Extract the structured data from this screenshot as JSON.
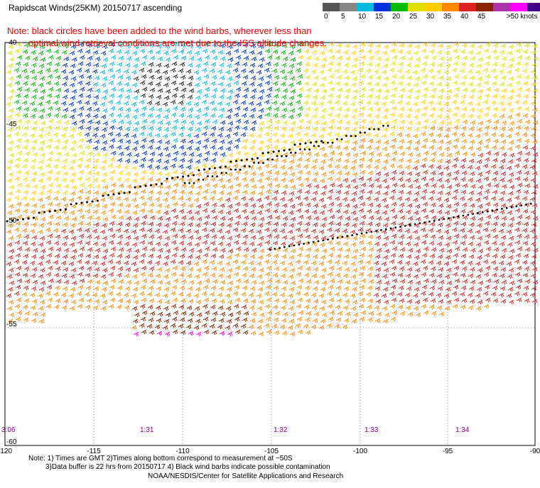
{
  "header": {
    "title": "Rapidscat Winds(25KM) 20150717 ascending"
  },
  "colorbar": {
    "colors": [
      "#555555",
      "#888888",
      "#00bbdd",
      "#0033dd",
      "#00bb00",
      "#dddd00",
      "#ffcc00",
      "#ff8800",
      "#dd2222",
      "#882200",
      "#aa33aa",
      "#ff00ff",
      "#440088"
    ],
    "labels": [
      "0",
      "5",
      "10",
      "15",
      "20",
      "25",
      "30",
      "35",
      "40",
      "45",
      ">50 knots"
    ],
    "label_slots": [
      0,
      1,
      2,
      3,
      4,
      5,
      6,
      7,
      8,
      9,
      10.7
    ]
  },
  "note": {
    "line1": "Note: black circles have been added to the wind barbs, wherever less than",
    "line2": "optimal wind retrieval conditions are met due to the ISS altitude changes."
  },
  "axes": {
    "x_ticks": [
      "-120",
      "-115",
      "-110",
      "-105",
      "-100",
      "-95",
      "-90"
    ],
    "y_ticks": [
      "-40",
      "-45",
      "-50",
      "-55",
      "-60"
    ]
  },
  "time_labels": [
    "3:06",
    "1:31",
    "1:32",
    "1:33",
    "1:34"
  ],
  "footer": {
    "line1": "Note: 1) Times are GMT 2)Times along bottom correspond to measurement at ~50S",
    "line2": "3)Data buffer is 22 hrs from 20150717 4) Black wind barbs indicate possible contamination",
    "line3": "NOAA/NESDIS/Center for Satellite Applications and Research"
  }
}
